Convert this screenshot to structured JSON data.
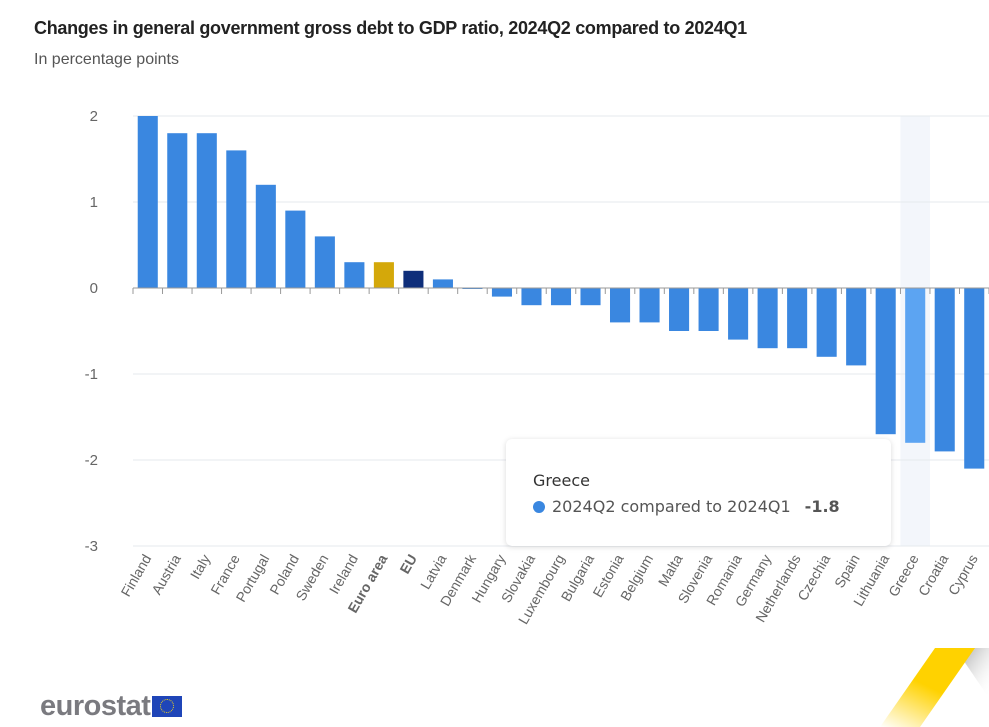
{
  "header": {
    "title": "Changes in general government gross debt to GDP ratio, 2024Q2 compared to 2024Q1",
    "subtitle": "In percentage points"
  },
  "chart_data": {
    "type": "bar",
    "title": "Changes in general government gross debt to GDP ratio, 2024Q2 compared to 2024Q1",
    "subtitle": "In percentage points",
    "xlabel": "",
    "ylabel": "",
    "ylim": [
      -3,
      2
    ],
    "yticks": [
      2,
      1,
      0,
      -1,
      -2,
      -3
    ],
    "grid": true,
    "categories": [
      "Finland",
      "Austria",
      "Italy",
      "France",
      "Portugal",
      "Poland",
      "Sweden",
      "Ireland",
      "Euro area",
      "EU",
      "Latvia",
      "Denmark",
      "Hungary",
      "Slovakia",
      "Luxembourg",
      "Bulgaria",
      "Estonia",
      "Belgium",
      "Malta",
      "Slovenia",
      "Romania",
      "Germany",
      "Netherlands",
      "Czechia",
      "Spain",
      "Lithuania",
      "Greece",
      "Croatia",
      "Cyprus"
    ],
    "bold_categories": [
      "Euro area",
      "EU"
    ],
    "series": [
      {
        "name": "2024Q2 compared to 2024Q1",
        "values": [
          2.0,
          1.8,
          1.8,
          1.6,
          1.2,
          0.9,
          0.6,
          0.3,
          0.3,
          0.2,
          0.1,
          0.0,
          -0.1,
          -0.2,
          -0.2,
          -0.2,
          -0.4,
          -0.4,
          -0.5,
          -0.5,
          -0.6,
          -0.7,
          -0.7,
          -0.8,
          -0.9,
          -1.7,
          -1.8,
          -1.9,
          -2.1
        ]
      }
    ],
    "colors": {
      "default": "#3a87e0",
      "euro_area": "#d4a80a",
      "eu": "#0e2e7a",
      "highlight": "#5ca4f2",
      "hover_band": "#f3f6fb",
      "grid": "#e6e9ee",
      "axis": "#999999",
      "tick_label": "#666666"
    },
    "hovered_category": "Greece",
    "legend": "none"
  },
  "tooltip": {
    "category": "Greece",
    "series_label": "2024Q2 compared to 2024Q1",
    "value": "-1.8"
  },
  "footer": {
    "logo_text": "eurostat"
  }
}
